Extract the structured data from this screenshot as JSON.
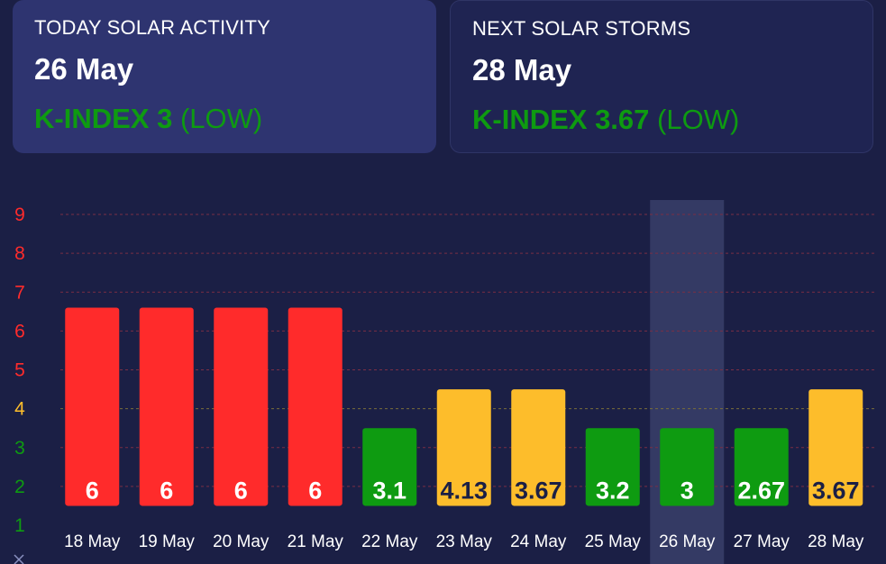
{
  "today": {
    "label": "TODAY SOLAR ACTIVITY",
    "date": "26 May",
    "kindex_text": "K-INDEX 3",
    "level_text": "(LOW)"
  },
  "next": {
    "label": "NEXT SOLAR STORMS",
    "date": "28 May",
    "kindex_text": "K-INDEX 3.67",
    "level_text": "(LOW)"
  },
  "colors": {
    "red": "#ff2b2b",
    "green": "#0e9b11",
    "yellow": "#fdbd2b",
    "background": "#1b1f45",
    "highlight": "#343a64"
  },
  "chart_data": {
    "type": "bar",
    "categories": [
      "18 May",
      "19 May",
      "20 May",
      "21 May",
      "22 May",
      "23 May",
      "24 May",
      "25 May",
      "26 May",
      "27 May",
      "28 May"
    ],
    "values": [
      6,
      6,
      6,
      6,
      3.1,
      4.13,
      3.67,
      3.2,
      3,
      2.67,
      3.67
    ],
    "value_labels": [
      "6",
      "6",
      "6",
      "6",
      "3.1",
      "4.13",
      "3.67",
      "3.2",
      "3",
      "2.67",
      "3.67"
    ],
    "bar_levels": [
      6.6,
      6.6,
      6.6,
      6.6,
      3.5,
      4.5,
      4.5,
      3.5,
      3.5,
      3.5,
      4.5
    ],
    "bar_colors": [
      "red",
      "red",
      "red",
      "red",
      "green",
      "yellow",
      "yellow",
      "green",
      "green",
      "green",
      "yellow"
    ],
    "highlight_category": "26 May",
    "y_ticks": [
      {
        "value": 1,
        "label": "1",
        "color": "green"
      },
      {
        "value": 2,
        "label": "2",
        "color": "green"
      },
      {
        "value": 3,
        "label": "3",
        "color": "green"
      },
      {
        "value": 4,
        "label": "4",
        "color": "yellow"
      },
      {
        "value": 5,
        "label": "5",
        "color": "red"
      },
      {
        "value": 6,
        "label": "6",
        "color": "red"
      },
      {
        "value": 7,
        "label": "7",
        "color": "red"
      },
      {
        "value": 8,
        "label": "8",
        "color": "red"
      },
      {
        "value": 9,
        "label": "9",
        "color": "red"
      }
    ],
    "ylim": [
      1,
      9
    ],
    "bar_base": 1.5,
    "grid": true,
    "title": "",
    "xlabel": "",
    "ylabel": ""
  }
}
